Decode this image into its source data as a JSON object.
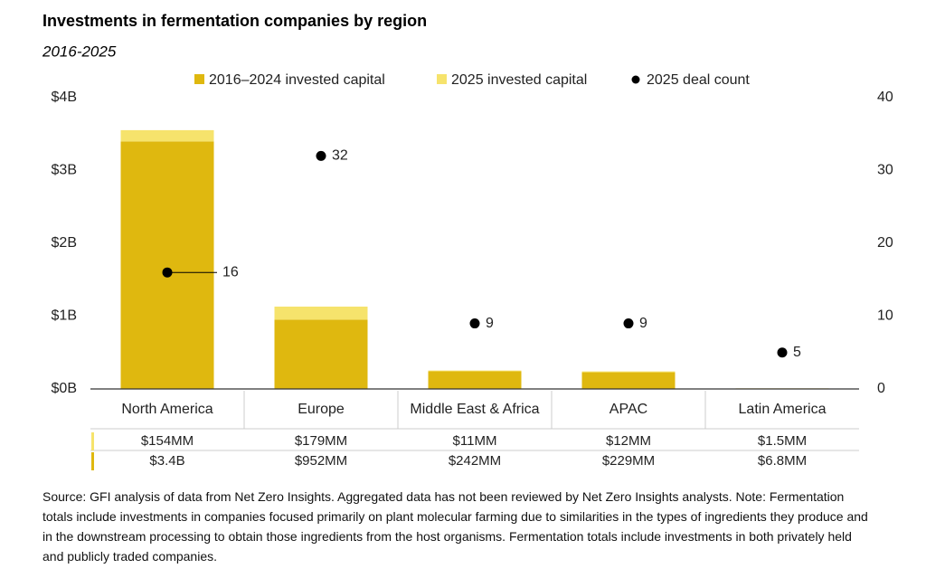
{
  "chart_data": {
    "type": "bar",
    "stacked": true,
    "title": "Investments in fermentation companies by region",
    "subtitle": "2016-2025",
    "categories": [
      "North America",
      "Europe",
      "Middle East & Africa",
      "APAC",
      "Latin America"
    ],
    "series": [
      {
        "name": "2016–2024 invested capital",
        "color": "#dfb80f",
        "values": [
          3.4,
          0.952,
          0.242,
          0.229,
          0.0068
        ],
        "value_labels": [
          "$3.4B",
          "$952MM",
          "$242MM",
          "$229MM",
          "$6.8MM"
        ]
      },
      {
        "name": "2025 invested capital",
        "color": "#f6e36c",
        "values": [
          0.154,
          0.179,
          0.011,
          0.012,
          0.0015
        ],
        "value_labels": [
          "$154MM",
          "$179MM",
          "$11MM",
          "$12MM",
          "$1.5MM"
        ]
      },
      {
        "name": "2025 deal count",
        "type": "scatter",
        "axis": "y2",
        "color": "#000000",
        "values": [
          16,
          32,
          9,
          9,
          5
        ]
      }
    ],
    "ylim": [
      0,
      4
    ],
    "yticks": [
      {
        "value": 0,
        "label": "$0B"
      },
      {
        "value": 1,
        "label": "$1B"
      },
      {
        "value": 2,
        "label": "$2B"
      },
      {
        "value": 3,
        "label": "$3B"
      },
      {
        "value": 4,
        "label": "$4B"
      }
    ],
    "y2lim": [
      0,
      40
    ],
    "y2ticks": [
      0,
      10,
      20,
      30,
      40
    ],
    "source": "Source: GFI analysis of data from Net Zero Insights. Aggregated data has not been reviewed by Net Zero Insights analysts. Note: Fermentation totals include investments in companies focused primarily on plant molecular farming due to similarities in the types of ingredients they produce and in the downstream processing to obtain those ingredients from the host organisms. Fermentation totals include investments in both privately held and publicly traded companies."
  }
}
